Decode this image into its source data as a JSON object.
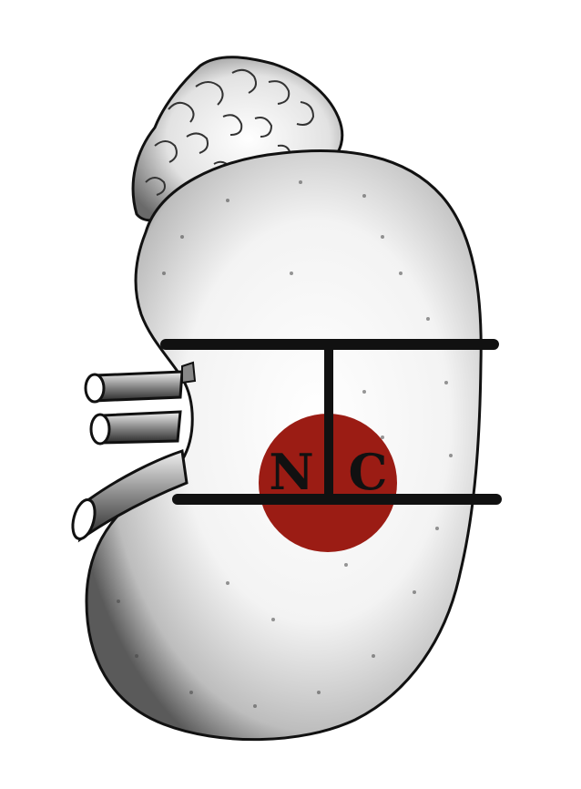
{
  "diagram": {
    "labels": {
      "left": "N",
      "right": "C"
    },
    "colors": {
      "tumor": "#9b1c14",
      "ink": "#111111",
      "kidney_fill": "#f4f4f4",
      "adrenal_fill": "#ececec"
    },
    "parts": [
      "adrenal-gland",
      "kidney",
      "renal-vessels",
      "ureter",
      "tumor",
      "polar-lines",
      "midline"
    ]
  }
}
